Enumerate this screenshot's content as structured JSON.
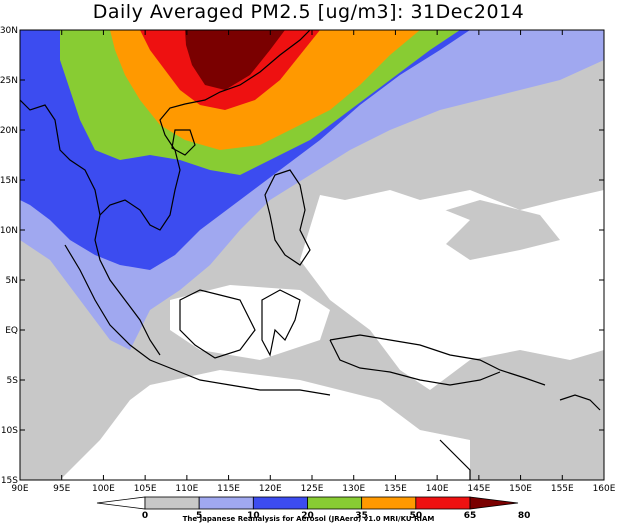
{
  "title": "Daily Averaged PM2.5 [ug/m3]: 31Dec2014",
  "map": {
    "extent": {
      "lon": [
        90,
        160
      ],
      "lat": [
        -15,
        30
      ]
    },
    "lat_labels": [
      "30N",
      "25N",
      "20N",
      "15N",
      "10N",
      "5N",
      "EQ",
      "5S",
      "10S",
      "15S"
    ],
    "lon_labels": [
      "90E",
      "95E",
      "100E",
      "105E",
      "110E",
      "115E",
      "120E",
      "125E",
      "130E",
      "135E",
      "140E",
      "145E",
      "150E",
      "155E",
      "160E"
    ]
  },
  "colorbar": {
    "labels": [
      "0",
      "5",
      "10",
      "20",
      "35",
      "50",
      "65",
      "80"
    ],
    "colors": [
      "#ffffff",
      "#c8c8c8",
      "#a0a8f0",
      "#3c4cf0",
      "#88cc33",
      "#ff9900",
      "#ee1111",
      "#7a0000"
    ]
  },
  "credit": "The Japanese Reanalysis for Aerosol (JRAero) v1.0 MRI/KU RIAM"
}
